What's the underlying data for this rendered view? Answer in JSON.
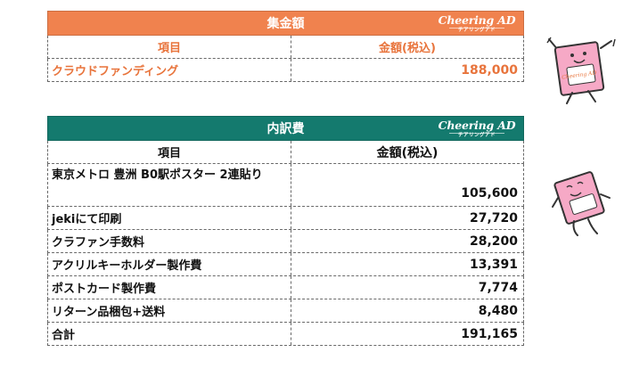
{
  "summary": {
    "title": "集金額",
    "logo_main": "Cheering AD",
    "logo_sub": "チアリングアド",
    "col_item": "項目",
    "col_amount": "金額(税込)",
    "rows": [
      {
        "item": "クラウドファンディング",
        "amount": "188,000"
      }
    ]
  },
  "breakdown": {
    "title": "内訳費",
    "logo_main": "Cheering AD",
    "logo_sub": "チアリングアド",
    "col_item": "項目",
    "col_amount": "金額(税込)",
    "rows": [
      {
        "item": "東京メトロ 豊洲 B0駅ポスター 2連貼り",
        "amount": "105,600"
      },
      {
        "item": "jekiにて印刷",
        "amount": "27,720"
      },
      {
        "item": "クラファン手数料",
        "amount": "28,200"
      },
      {
        "item": "アクリルキーホルダー製作費",
        "amount": "13,391"
      },
      {
        "item": "ポストカード製作費",
        "amount": "7,774"
      },
      {
        "item": "リターン品梱包+送料",
        "amount": "8,480"
      },
      {
        "item": "合計",
        "amount": "191,165"
      }
    ]
  },
  "mascot": {
    "top_label": "Cheering AD",
    "colors": {
      "body": "#f6a9c6",
      "outline": "#333333",
      "accent": "#e8743c",
      "bottom_body": "#f6a9c6"
    }
  }
}
